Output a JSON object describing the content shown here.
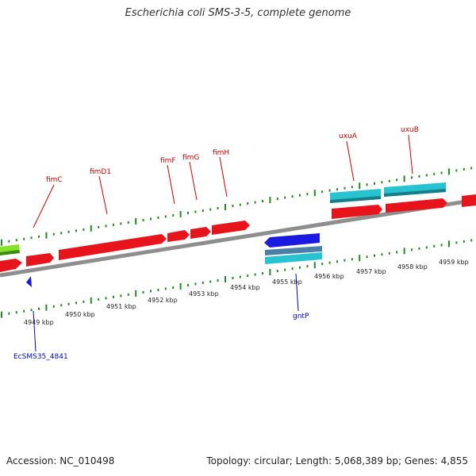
{
  "title": "Escherichia coli SMS-3-5, complete genome",
  "footer": {
    "accession": "Accession: NC_010498",
    "summary": "Topology: circular; Length: 5,068,389 bp; Genes: 4,855"
  },
  "colors": {
    "forward_gene": "#e8141b",
    "rna_gene": "#27c3d1",
    "reverse_gene": "#1a1ae0",
    "misc_gene": "#85e225",
    "backbone": "#8e8e8e",
    "tick": "#228b22",
    "label_forward": "#cc0000",
    "label_reverse": "#0000cc"
  },
  "upper_scale": {
    "labels": []
  },
  "lower_scale": {
    "labels": [
      "4949 kbp",
      "4950 kbp",
      "4951 kbp",
      "4952 kbp",
      "4953 kbp",
      "4954 kbp",
      "4955 kbp",
      "4956 kbp",
      "4957 kbp",
      "4958 kbp",
      "4959 kbp"
    ]
  },
  "gene_labels": [
    {
      "text": "fimC",
      "strand": "forward"
    },
    {
      "text": "fimD1",
      "strand": "forward"
    },
    {
      "text": "fimF",
      "strand": "forward"
    },
    {
      "text": "fimG",
      "strand": "forward"
    },
    {
      "text": "fimH",
      "strand": "forward"
    },
    {
      "text": "uxuA",
      "strand": "forward"
    },
    {
      "text": "uxuB",
      "strand": "forward"
    },
    {
      "text": "gntP",
      "strand": "reverse"
    },
    {
      "text": "EcSMS35_4841",
      "strand": "reverse"
    }
  ]
}
